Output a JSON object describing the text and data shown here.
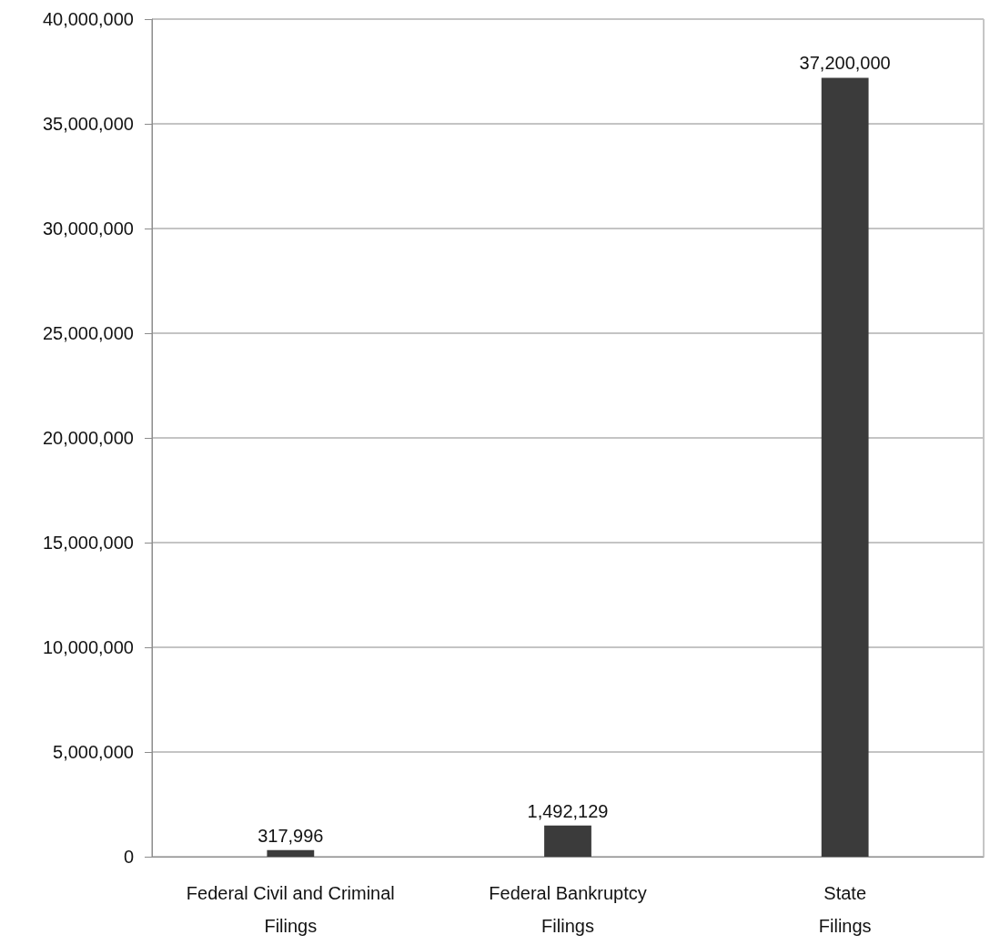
{
  "chart_data": {
    "type": "bar",
    "categories": [
      "Federal Civil and Criminal Filings",
      "Federal Bankruptcy Filings",
      "State Filings"
    ],
    "values": [
      317996,
      1492129,
      37200000
    ],
    "value_labels": [
      "317,996",
      "1,492,129",
      "37,200,000"
    ],
    "color": "#3b3b3b",
    "ylim": [
      0,
      40000000
    ],
    "yticks": [
      0,
      {
        "value": 5000000,
        "label": "5,000,000"
      },
      {
        "value": 10000000,
        "label": "10,000,000"
      },
      {
        "value": 15000000,
        "label": "15,000,000"
      },
      {
        "value": 20000000,
        "label": "20,000,000"
      },
      {
        "value": 25000000,
        "label": "25,000,000"
      },
      {
        "value": 30000000,
        "label": "30,000,000"
      },
      {
        "value": 35000000,
        "label": "35,000,000"
      },
      {
        "value": 40000000,
        "label": "40,000,000"
      }
    ],
    "grid": "y"
  }
}
